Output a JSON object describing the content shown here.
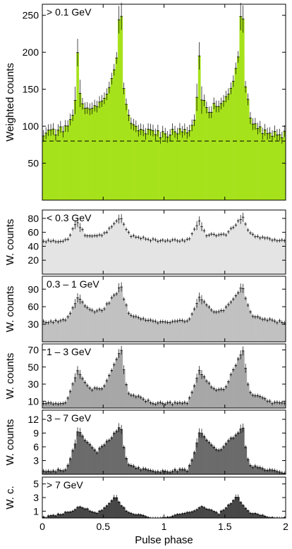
{
  "colors": {
    "fill_top": "#a6e21b",
    "fill_lt03": "#e4e4e4",
    "fill_03_1": "#c1c1c1",
    "fill_1_3": "#a7a7a7",
    "fill_3_7": "#6b6b6b",
    "fill_gt7": "#474747",
    "line": "#000000"
  },
  "x_axis": {
    "label": "Pulse phase",
    "range": [
      0,
      2
    ],
    "ticks": [
      0,
      0.5,
      1,
      1.5,
      2
    ],
    "tick_labels": [
      "0",
      "0.5",
      "1",
      "1.5",
      "2"
    ]
  },
  "chart_data": [
    {
      "type": "histogram",
      "energy_label": "> 0.1 GeV",
      "ylabel": "Weighted counts",
      "ylim": [
        0,
        265
      ],
      "yticks": [
        50,
        100,
        150,
        200,
        250
      ],
      "baseline": 80,
      "fill": "fill_top",
      "peaks": [
        {
          "phase": 0.29,
          "value": 200
        },
        {
          "phase": 0.64,
          "value": 245
        }
      ],
      "approx_profile": [
        [
          0.0,
          90
        ],
        [
          0.1,
          92
        ],
        [
          0.2,
          96
        ],
        [
          0.25,
          112
        ],
        [
          0.28,
          150
        ],
        [
          0.29,
          200
        ],
        [
          0.31,
          140
        ],
        [
          0.35,
          120
        ],
        [
          0.45,
          130
        ],
        [
          0.55,
          150
        ],
        [
          0.6,
          180
        ],
        [
          0.64,
          245
        ],
        [
          0.67,
          150
        ],
        [
          0.72,
          105
        ],
        [
          0.8,
          95
        ],
        [
          0.9,
          90
        ],
        [
          1.0,
          88
        ]
      ]
    },
    {
      "type": "histogram",
      "energy_label": "< 0.3 GeV",
      "ylabel": "W. counts",
      "ylim": [
        0,
        92
      ],
      "yticks": [
        20,
        40,
        60,
        80
      ],
      "fill": "fill_lt03",
      "peaks": [
        {
          "phase": 0.29,
          "value": 75
        },
        {
          "phase": 0.64,
          "value": 80
        }
      ],
      "approx_profile": [
        [
          0.0,
          47
        ],
        [
          0.2,
          49
        ],
        [
          0.29,
          75
        ],
        [
          0.35,
          56
        ],
        [
          0.5,
          56
        ],
        [
          0.64,
          80
        ],
        [
          0.72,
          56
        ],
        [
          0.9,
          49
        ],
        [
          1.0,
          47
        ]
      ]
    },
    {
      "type": "histogram",
      "energy_label": "0.3 – 1 GeV",
      "ylabel": "W. counts",
      "ylim": [
        0,
        112
      ],
      "yticks": [
        30,
        60,
        90
      ],
      "fill": "fill_03_1",
      "peaks": [
        {
          "phase": 0.29,
          "value": 75
        },
        {
          "phase": 0.64,
          "value": 92
        }
      ],
      "approx_profile": [
        [
          0.0,
          33
        ],
        [
          0.2,
          37
        ],
        [
          0.29,
          75
        ],
        [
          0.4,
          52
        ],
        [
          0.5,
          55
        ],
        [
          0.64,
          92
        ],
        [
          0.72,
          45
        ],
        [
          0.9,
          35
        ],
        [
          1.0,
          33
        ]
      ]
    },
    {
      "type": "histogram",
      "energy_label": "1 – 3 GeV",
      "ylabel": "W. counts",
      "ylim": [
        2,
        77
      ],
      "yticks": [
        10,
        30,
        50,
        70
      ],
      "fill": "fill_1_3",
      "peaks": [
        {
          "phase": 0.29,
          "value": 45
        },
        {
          "phase": 0.645,
          "value": 70
        }
      ],
      "approx_profile": [
        [
          0.0,
          7
        ],
        [
          0.2,
          9
        ],
        [
          0.29,
          45
        ],
        [
          0.4,
          24
        ],
        [
          0.5,
          25
        ],
        [
          0.645,
          70
        ],
        [
          0.7,
          20
        ],
        [
          0.9,
          8
        ],
        [
          1.0,
          7
        ]
      ]
    },
    {
      "type": "histogram",
      "energy_label": "3 – 7 GeV",
      "ylabel": "W. counts",
      "ylim": [
        0,
        14
      ],
      "yticks": [
        3,
        6,
        9,
        12
      ],
      "tick_labels": [
        "3",
        "6",
        "9",
        "12"
      ],
      "fill": "fill_3_7",
      "peaks": [
        {
          "phase": 0.3,
          "value": 9
        },
        {
          "phase": 0.64,
          "value": 10
        }
      ],
      "approx_profile": [
        [
          0.0,
          0.6
        ],
        [
          0.2,
          1
        ],
        [
          0.3,
          9
        ],
        [
          0.45,
          5
        ],
        [
          0.6,
          9
        ],
        [
          0.64,
          10
        ],
        [
          0.7,
          2
        ],
        [
          0.9,
          0.6
        ],
        [
          1.0,
          0.5
        ]
      ]
    },
    {
      "type": "histogram",
      "energy_label": "> 7 GeV",
      "ylabel": "W. c.",
      "ylim": [
        0,
        6
      ],
      "yticks": [
        1,
        3,
        5
      ],
      "fill": "fill_gt7",
      "peaks": [
        {
          "phase": 0.6,
          "value": 3
        }
      ],
      "approx_profile": [
        [
          0.0,
          0
        ],
        [
          0.25,
          1
        ],
        [
          0.3,
          1.8
        ],
        [
          0.45,
          0.6
        ],
        [
          0.6,
          3
        ],
        [
          0.7,
          0.8
        ],
        [
          0.9,
          0
        ],
        [
          1.0,
          0
        ]
      ]
    }
  ]
}
